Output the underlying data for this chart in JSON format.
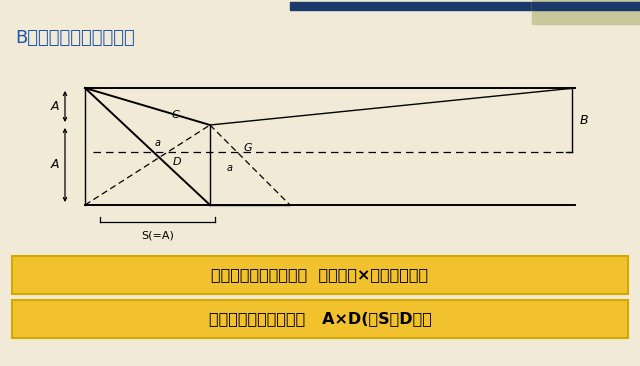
{
  "bg_color": "#f0ead6",
  "title": "B、四坡水屋面坡度系数",
  "title_color": "#2255aa",
  "title_fontsize": 13,
  "header_bar_color": "#1b3a6b",
  "header_accent_color": "#c8c89a",
  "formula1": "四坡水屋面斜面积＝偶  延尺系数×屋面坡度系数",
  "formula2": "四坡水屋面斜脊长度＝   A×D(当S＝D时）",
  "formula_bg": "#f2c12e",
  "formula_border": "#d4a800",
  "formula_fontsize": 11.5,
  "formula2_fontsize": 11.5
}
